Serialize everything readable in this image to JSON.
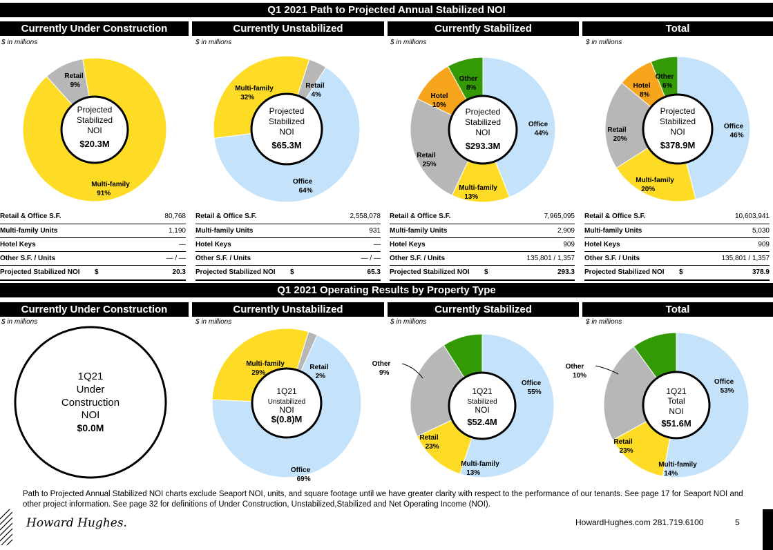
{
  "top_title": "Q1 2021 Path to Projected Annual Stabilized NOI",
  "bottom_title": "Q1 2021 Operating Results by Property Type",
  "unit_note": "$ in millions",
  "column_headers": [
    "Currently Under Construction",
    "Currently Unstabilized",
    "Currently Stabilized",
    "Total"
  ],
  "colors": {
    "office": "#c4e3fa",
    "multifamily": "#fedc25",
    "retail": "#b7b7b7",
    "hotel": "#f7a51c",
    "other": "#339a06"
  },
  "chart_data": [
    {
      "type": "pie",
      "title": "Currently Under Construction",
      "center": [
        "Projected",
        "Stabilized",
        "NOI",
        "$20.3M"
      ],
      "slices": [
        {
          "label": "Retail",
          "value": 9,
          "pct": "9%"
        },
        {
          "label": "Multi-family",
          "value": 91,
          "pct": "91%"
        }
      ]
    },
    {
      "type": "pie",
      "title": "Currently Unstabilized",
      "center": [
        "Projected",
        "Stabilized",
        "NOI",
        "$65.3M"
      ],
      "slices": [
        {
          "label": "Retail",
          "value": 4,
          "pct": "4%"
        },
        {
          "label": "Office",
          "value": 64,
          "pct": "64%"
        },
        {
          "label": "Multi-family",
          "value": 32,
          "pct": "32%"
        }
      ]
    },
    {
      "type": "pie",
      "title": "Currently Stabilized",
      "center": [
        "Projected",
        "Stabilized",
        "NOI",
        "$293.3M"
      ],
      "slices": [
        {
          "label": "Office",
          "value": 44,
          "pct": "44%"
        },
        {
          "label": "Multi-family",
          "value": 13,
          "pct": "13%"
        },
        {
          "label": "Retail",
          "value": 25,
          "pct": "25%"
        },
        {
          "label": "Hotel",
          "value": 10,
          "pct": "10%"
        },
        {
          "label": "Other",
          "value": 8,
          "pct": "8%"
        }
      ]
    },
    {
      "type": "pie",
      "title": "Total",
      "center": [
        "Projected",
        "Stabilized",
        "NOI",
        "$378.9M"
      ],
      "slices": [
        {
          "label": "Office",
          "value": 46,
          "pct": "46%"
        },
        {
          "label": "Multi-family",
          "value": 20,
          "pct": "20%"
        },
        {
          "label": "Retail",
          "value": 20,
          "pct": "20%"
        },
        {
          "label": "Hotel",
          "value": 8,
          "pct": "8%"
        },
        {
          "label": "Other",
          "value": 6,
          "pct": "6%"
        }
      ]
    },
    {
      "type": "pie",
      "title": "Currently Under Construction",
      "center": [
        "1Q21",
        "Under",
        "Construction",
        "NOI",
        "$0.0M"
      ],
      "slices": []
    },
    {
      "type": "pie",
      "title": "Currently Unstabilized",
      "center": [
        "1Q21",
        "Unstabilized",
        "NOI",
        "$(0.8)M"
      ],
      "slices": [
        {
          "label": "Retail",
          "value": 2,
          "pct": "2%"
        },
        {
          "label": "Office",
          "value": 69,
          "pct": "69%"
        },
        {
          "label": "Multi-family",
          "value": 29,
          "pct": "29%"
        }
      ]
    },
    {
      "type": "pie",
      "title": "Currently Stabilized",
      "center": [
        "1Q21",
        "Stabilized",
        "NOI",
        "$52.4M"
      ],
      "slices": [
        {
          "label": "Office",
          "value": 55,
          "pct": "55%"
        },
        {
          "label": "Multi-family",
          "value": 13,
          "pct": "13%"
        },
        {
          "label": "Retail",
          "value": 23,
          "pct": "23%"
        },
        {
          "label": "Other",
          "value": 9,
          "pct": "9%"
        }
      ]
    },
    {
      "type": "pie",
      "title": "Total",
      "center": [
        "1Q21",
        "Total",
        "NOI",
        "$51.6M"
      ],
      "slices": [
        {
          "label": "Office",
          "value": 53,
          "pct": "53%"
        },
        {
          "label": "Multi-family",
          "value": 14,
          "pct": "14%"
        },
        {
          "label": "Retail",
          "value": 23,
          "pct": "23%"
        },
        {
          "label": "Other",
          "value": 10,
          "pct": "10%"
        }
      ]
    }
  ],
  "tables": [
    {
      "rows": [
        [
          "Retail & Office S.F.",
          "80,768"
        ],
        [
          "Multi-family Units",
          "1,190"
        ],
        [
          "Hotel Keys",
          "—"
        ],
        [
          "Other S.F. / Units",
          "—  /  —"
        ],
        [
          "Projected Stabilized NOI",
          "20.3"
        ]
      ]
    },
    {
      "rows": [
        [
          "Retail & Office S.F.",
          "2,558,078"
        ],
        [
          "Multi-family Units",
          "931"
        ],
        [
          "Hotel Keys",
          "—"
        ],
        [
          "Other S.F. / Units",
          "—  /  —"
        ],
        [
          "Projected Stabilized NOI",
          "65.3"
        ]
      ]
    },
    {
      "rows": [
        [
          "Retail & Office S.F.",
          "7,965,095"
        ],
        [
          "Multi-family Units",
          "2,909"
        ],
        [
          "Hotel Keys",
          "909"
        ],
        [
          "Other S.F. / Units",
          "135,801  /  1,357"
        ],
        [
          "Projected Stabilized NOI",
          "293.3"
        ]
      ]
    },
    {
      "rows": [
        [
          "Retail & Office S.F.",
          "10,603,941"
        ],
        [
          "Multi-family Units",
          "5,030"
        ],
        [
          "Hotel Keys",
          "909"
        ],
        [
          "Other S.F. / Units",
          "135,801  /  1,357"
        ],
        [
          "Projected Stabilized NOI",
          "378.9"
        ]
      ]
    }
  ],
  "dollar_sign": "$",
  "footnote": "Path to Projected Annual Stabilized NOI charts exclude Seaport NOI, units, and square footage until we have greater clarity with respect to the performance of our tenants. See page 17 for Seaport NOI and other project information. See page 32 for definitions of Under Construction, Unstabilized,Stabilized and Net Operating Income (NOI).",
  "logo_text": "Howard Hughes.",
  "contact": "HowardHughes.com   281.719.6100",
  "page_number": "5"
}
